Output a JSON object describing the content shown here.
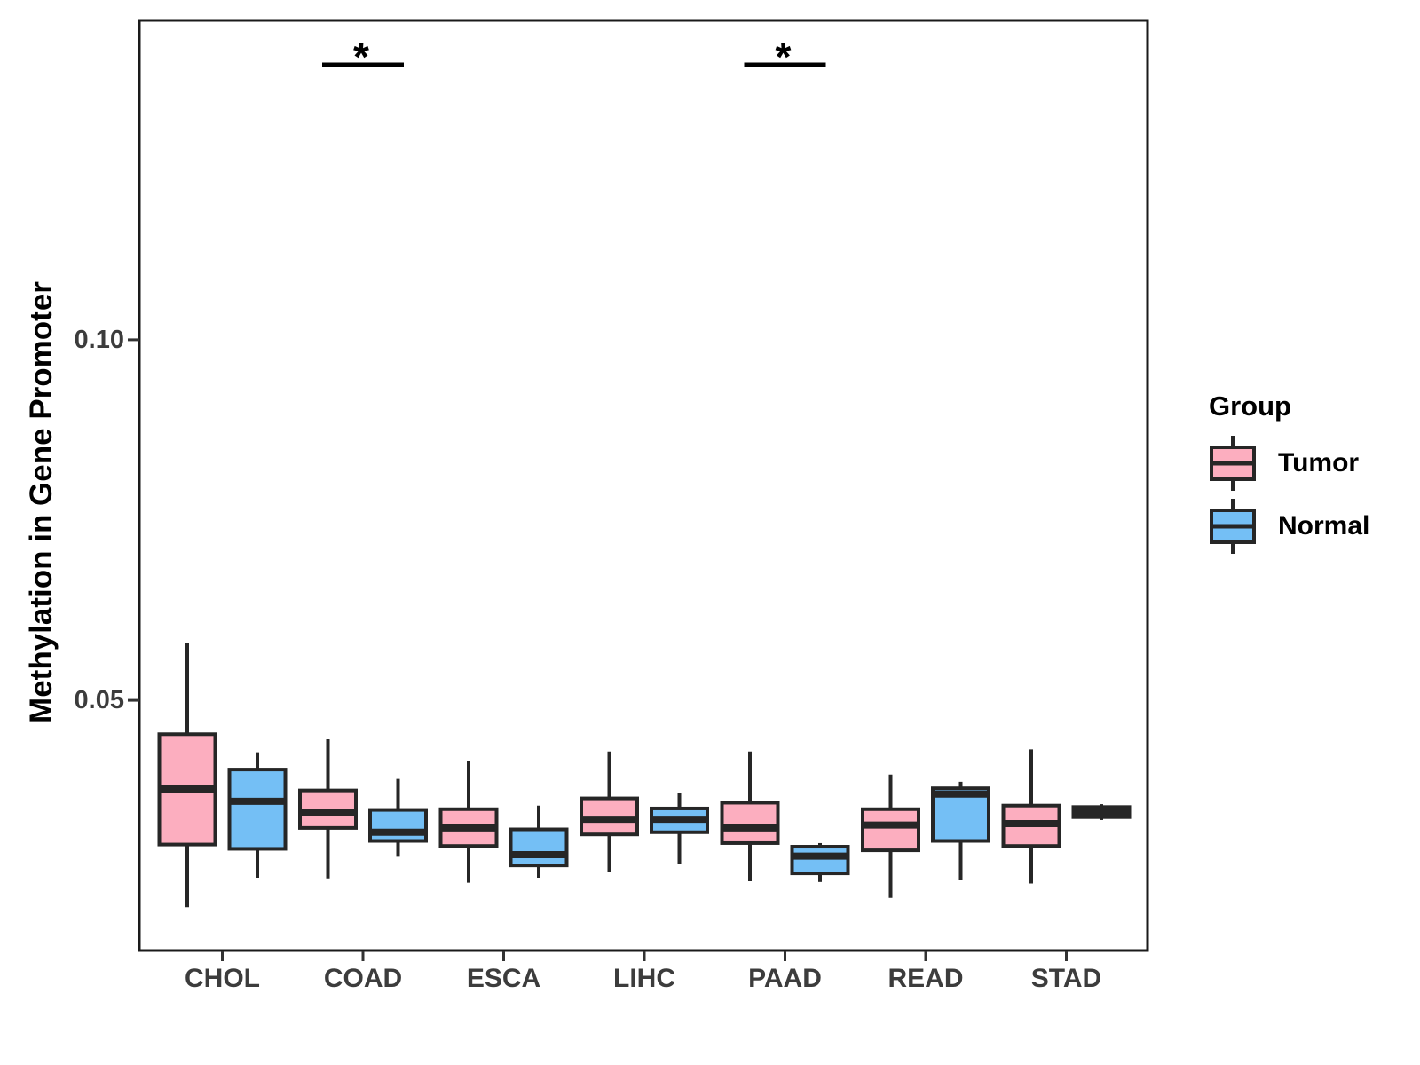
{
  "y_axis": {
    "title": "Methylation in Gene Promoter"
  },
  "legend": {
    "title": "Group"
  },
  "chart_data": {
    "type": "boxplot",
    "title": "",
    "xlabel": "",
    "ylabel": "Methylation in Gene Promoter",
    "categories": [
      "CHOL",
      "COAD",
      "ESCA",
      "LIHC",
      "PAAD",
      "READ",
      "STAD"
    ],
    "ylim": [
      0.0153,
      0.1443
    ],
    "yticks": [
      {
        "value": 0.05,
        "label": "0.05"
      },
      {
        "value": 0.1,
        "label": "0.10"
      }
    ],
    "grid": "off",
    "legend_position": "right",
    "legend_title": "Group",
    "series": [
      {
        "name": "Tumor",
        "fill": "#FCAEBF",
        "boxes": [
          {
            "category": "CHOL",
            "whisker_low": 0.0213,
            "q1": 0.03,
            "median": 0.0377,
            "q3": 0.0453,
            "whisker_high": 0.058
          },
          {
            "category": "COAD",
            "whisker_low": 0.0253,
            "q1": 0.0323,
            "median": 0.0345,
            "q3": 0.0375,
            "whisker_high": 0.0446
          },
          {
            "category": "ESCA",
            "whisker_low": 0.0247,
            "q1": 0.0298,
            "median": 0.0323,
            "q3": 0.0349,
            "whisker_high": 0.0416
          },
          {
            "category": "LIHC",
            "whisker_low": 0.0262,
            "q1": 0.0314,
            "median": 0.0335,
            "q3": 0.0364,
            "whisker_high": 0.0429
          },
          {
            "category": "PAAD",
            "whisker_low": 0.0249,
            "q1": 0.0302,
            "median": 0.0323,
            "q3": 0.0358,
            "whisker_high": 0.0429
          },
          {
            "category": "READ",
            "whisker_low": 0.0226,
            "q1": 0.0292,
            "median": 0.0327,
            "q3": 0.0349,
            "whisker_high": 0.0397
          },
          {
            "category": "STAD",
            "whisker_low": 0.0246,
            "q1": 0.0298,
            "median": 0.0329,
            "q3": 0.0354,
            "whisker_high": 0.0432
          }
        ]
      },
      {
        "name": "Normal",
        "fill": "#74BFF5",
        "boxes": [
          {
            "category": "CHOL",
            "whisker_low": 0.0254,
            "q1": 0.0294,
            "median": 0.036,
            "q3": 0.0404,
            "whisker_high": 0.0428
          },
          {
            "category": "COAD",
            "whisker_low": 0.0283,
            "q1": 0.0305,
            "median": 0.0317,
            "q3": 0.0348,
            "whisker_high": 0.0391
          },
          {
            "category": "ESCA",
            "whisker_low": 0.0254,
            "q1": 0.0271,
            "median": 0.0286,
            "q3": 0.0321,
            "whisker_high": 0.0354
          },
          {
            "category": "LIHC",
            "whisker_low": 0.0273,
            "q1": 0.0317,
            "median": 0.0335,
            "q3": 0.035,
            "whisker_high": 0.0372
          },
          {
            "category": "PAAD",
            "whisker_low": 0.0248,
            "q1": 0.026,
            "median": 0.0284,
            "q3": 0.0297,
            "whisker_high": 0.0302
          },
          {
            "category": "READ",
            "whisker_low": 0.0251,
            "q1": 0.0305,
            "median": 0.037,
            "q3": 0.0378,
            "whisker_high": 0.0387
          },
          {
            "category": "STAD",
            "whisker_low": 0.0334,
            "q1": 0.0338,
            "median": 0.0345,
            "q3": 0.0352,
            "whisker_high": 0.0356
          }
        ]
      }
    ],
    "annotations": [
      {
        "category": "COAD",
        "label": "*"
      },
      {
        "category": "PAAD",
        "label": "*"
      }
    ],
    "colors": {
      "tumor_fill": "#FCAEBF",
      "normal_fill": "#74BFF5",
      "box_stroke": "#262626",
      "panel_border": "#1A1A1A",
      "axis_text": "#3C3C3C",
      "annotation": "#000000"
    }
  }
}
